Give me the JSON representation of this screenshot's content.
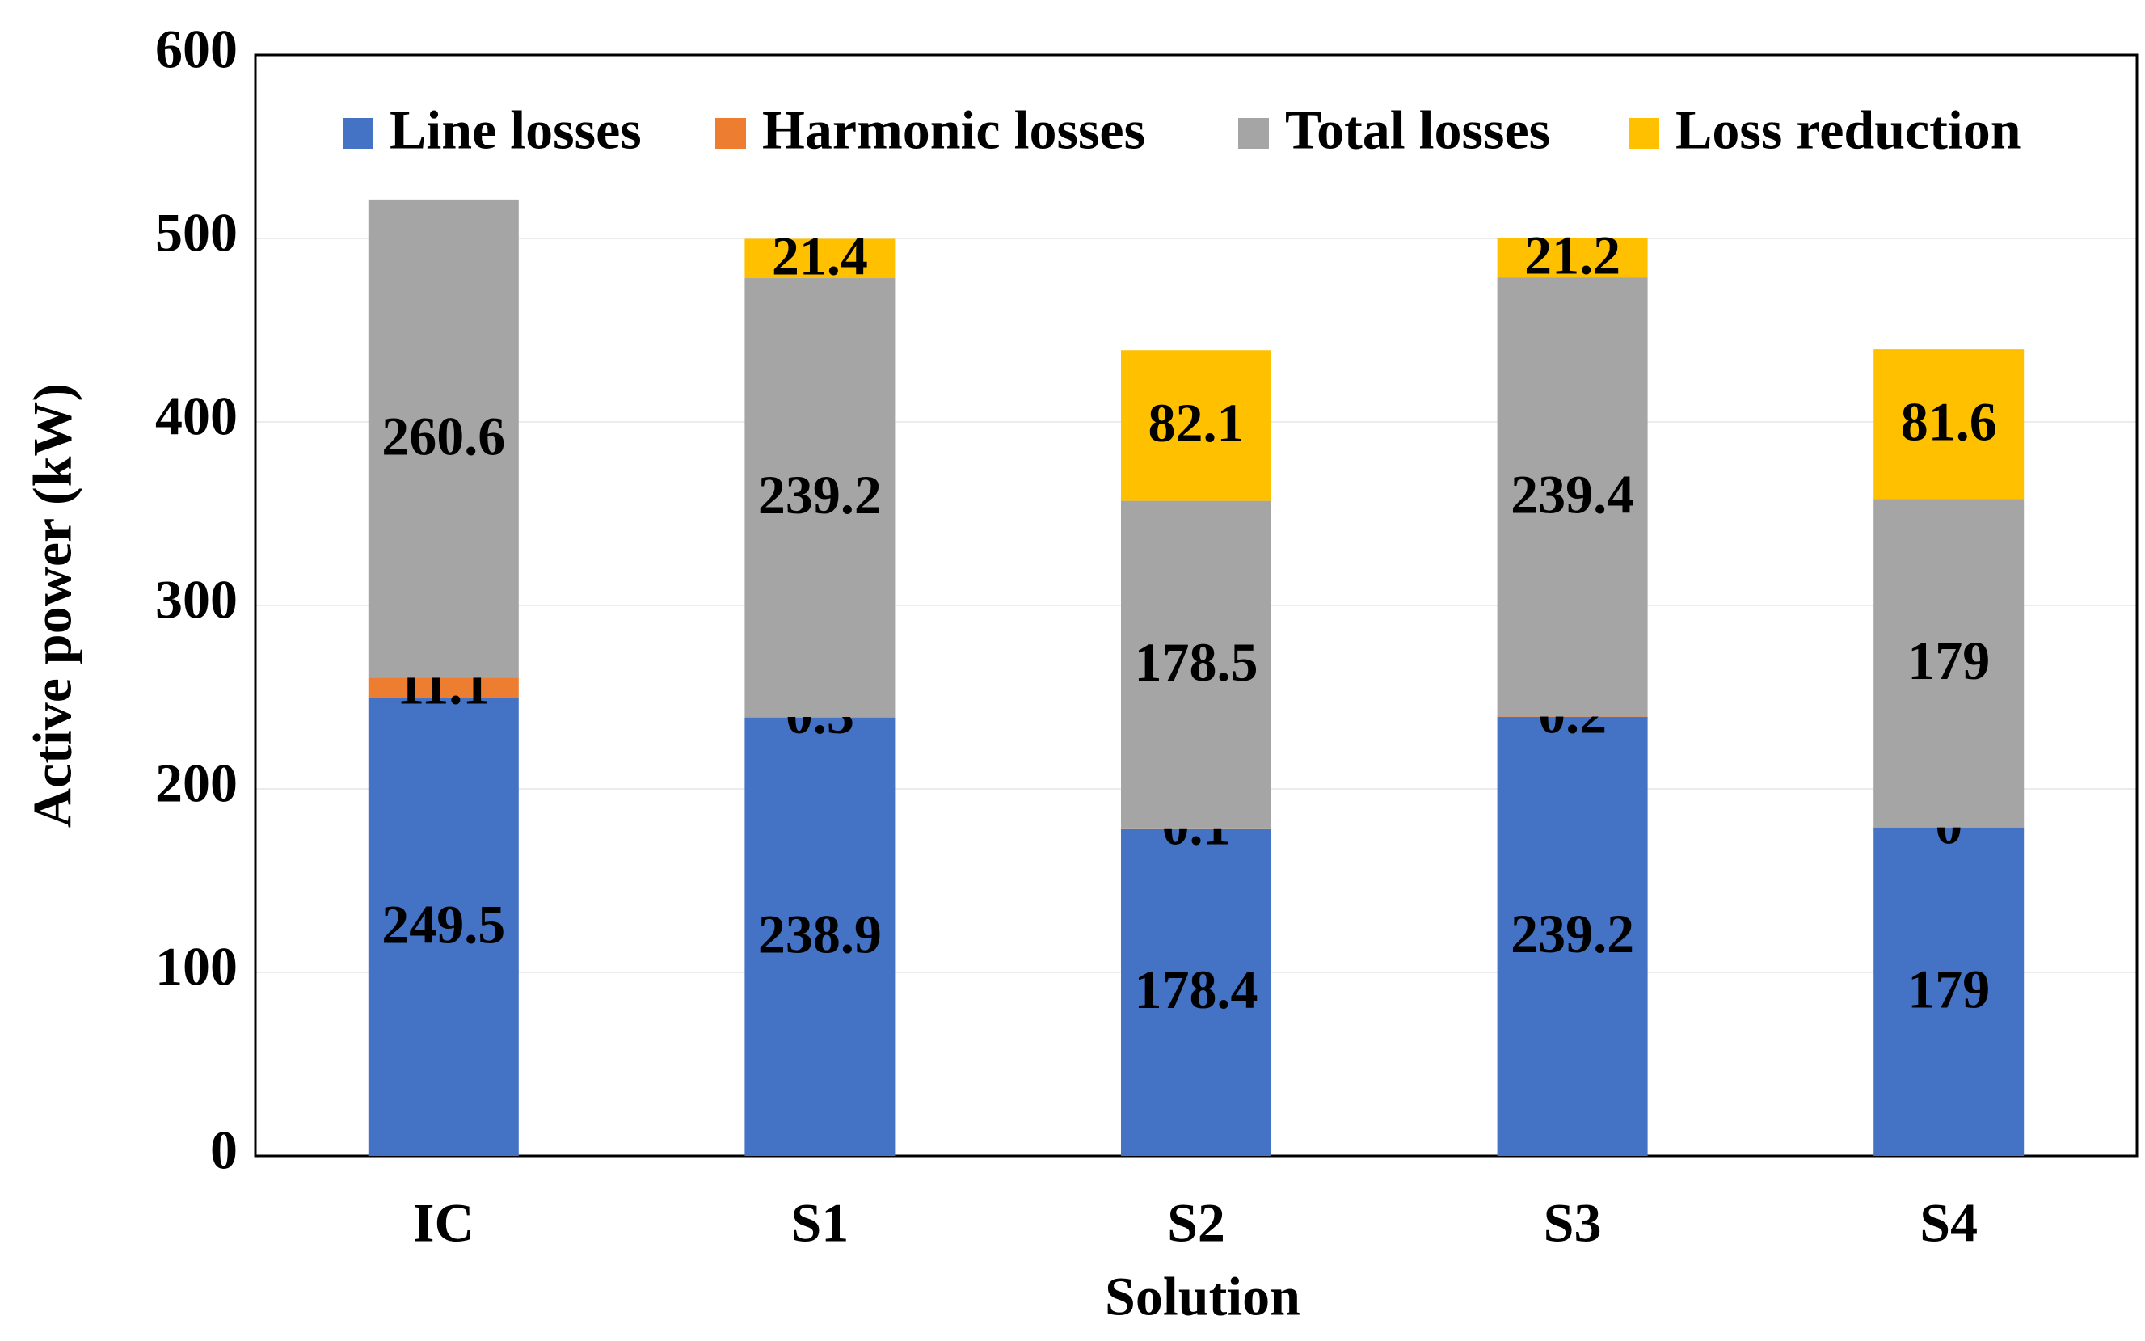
{
  "chart_data": {
    "type": "stacked-bar",
    "x_label": "Solution",
    "y_label": "Active power (kW)",
    "categories": [
      "IC",
      "S1",
      "S2",
      "S3",
      "S4"
    ],
    "series": [
      {
        "name": "Line losses",
        "color": "#4472c4",
        "values": [
          249.5,
          238.9,
          178.4,
          239.2,
          179
        ]
      },
      {
        "name": "Harmonic losses",
        "color": "#ed7d31",
        "values": [
          11.1,
          0.3,
          0.1,
          0.2,
          0
        ]
      },
      {
        "name": "Total losses",
        "color": "#a5a5a5",
        "values": [
          260.6,
          239.2,
          178.5,
          239.4,
          179
        ]
      },
      {
        "name": "Loss reduction",
        "color": "#ffc000",
        "values": [
          null,
          21.4,
          82.1,
          21.2,
          81.6
        ]
      }
    ],
    "ylim": [
      0,
      600
    ],
    "yticks": [
      0,
      100,
      200,
      300,
      400,
      500,
      600
    ],
    "grid": true,
    "legend": "top"
  }
}
